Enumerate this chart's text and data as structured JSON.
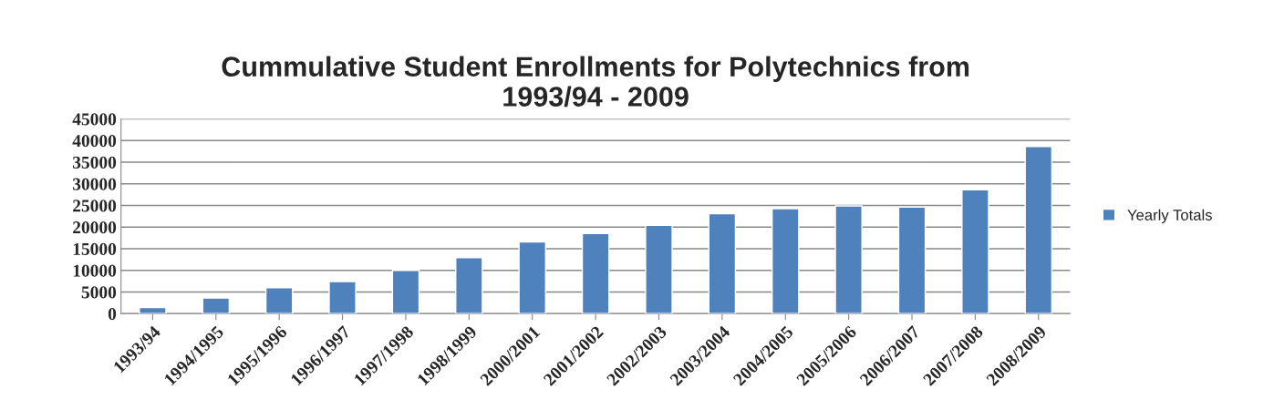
{
  "chart_data": {
    "type": "bar",
    "title": "Cummulative Student Enrollments for Polytechnics from\n1993/94 - 2009",
    "categories": [
      "1993/94",
      "1994/1995",
      "1995/1996",
      "1996/1997",
      "1997/1998",
      "1998/1999",
      "2000/2001",
      "2001/2002",
      "2002/2003",
      "2003/2004",
      "2004/2005",
      "2005/2006",
      "2006/2007",
      "2007/2008",
      "2008/2009"
    ],
    "series": [
      {
        "name": "Yearly Totals",
        "color": "#4f81bd",
        "values": [
          1400,
          3600,
          6000,
          7400,
          10000,
          12950,
          16550,
          18500,
          20400,
          23100,
          24250,
          24900,
          24600,
          28600,
          38600
        ]
      }
    ],
    "ylim": [
      0,
      45000
    ],
    "yticks": [
      0,
      5000,
      10000,
      15000,
      20000,
      25000,
      30000,
      35000,
      40000,
      45000
    ],
    "grid": "y",
    "legend": "right"
  }
}
